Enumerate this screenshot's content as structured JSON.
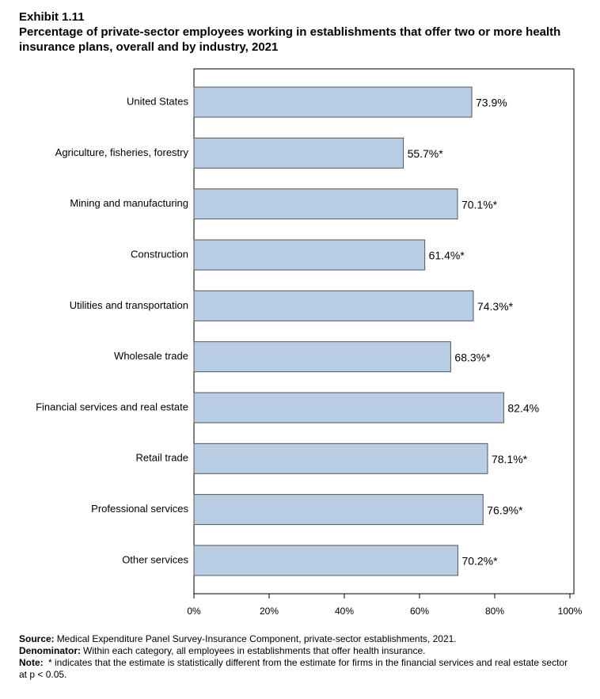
{
  "chart_data": {
    "type": "hbar",
    "exhibit": "Exhibit 1.11",
    "title": "Percentage of private-sector employees working in establishments that offer two or more health insurance plans, overall and by industry, 2021",
    "categories": [
      "United States",
      "Agriculture, fisheries, forestry",
      "Mining and manufacturing",
      "Construction",
      "Utilities and transportation",
      "Wholesale trade",
      "Financial services and real estate",
      "Retail trade",
      "Professional services",
      "Other services"
    ],
    "values": [
      73.9,
      55.7,
      70.1,
      61.4,
      74.3,
      68.3,
      82.4,
      78.1,
      76.9,
      70.2
    ],
    "value_labels": [
      "73.9%",
      "55.7%*",
      "70.1%*",
      "61.4%*",
      "74.3%*",
      "68.3%*",
      "82.4%",
      "78.1%*",
      "76.9%*",
      "70.2%*"
    ],
    "color": "#b9cde5",
    "xlim": [
      0,
      100
    ],
    "xticks": [
      {
        "value": 0,
        "label": "0%"
      },
      {
        "value": 20,
        "label": "20%"
      },
      {
        "value": 40,
        "label": "40%"
      },
      {
        "value": 60,
        "label": "60%"
      },
      {
        "value": 80,
        "label": "80%"
      },
      {
        "value": 100,
        "label": "100%"
      }
    ],
    "notes": [
      {
        "label": "Source:",
        "text": "Medical Expenditure Panel Survey-Insurance Component, private-sector establishments, 2021."
      },
      {
        "label": "Denominator:",
        "text": "Within each category, all employees in establishments that offer health insurance."
      },
      {
        "label": "Note:",
        "text": " * indicates that the estimate is statistically different from the estimate for firms in the financial services and real estate sector at p < 0.05."
      }
    ]
  }
}
